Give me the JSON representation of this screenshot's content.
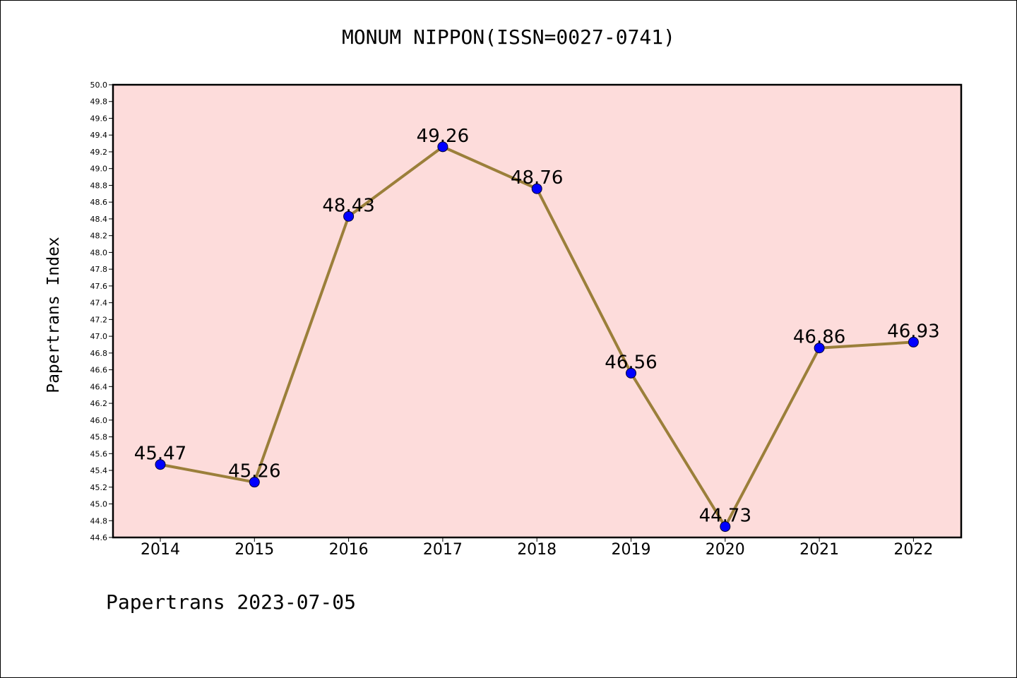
{
  "title": "MONUM NIPPON(ISSN=0027-0741)",
  "footer": "Papertrans 2023-07-05",
  "colors": {
    "plot_background": "#fddcdb",
    "line": "#9b7f3a",
    "marker": "#0000ff"
  },
  "chart_data": {
    "type": "line",
    "title": "MONUM NIPPON(ISSN=0027-0741)",
    "xlabel": "",
    "ylabel": "Papertrans Index",
    "categories": [
      "2014",
      "2015",
      "2016",
      "2017",
      "2018",
      "2019",
      "2020",
      "2021",
      "2022"
    ],
    "values": [
      45.47,
      45.26,
      48.43,
      49.26,
      48.76,
      46.56,
      44.73,
      46.86,
      46.93
    ],
    "data_labels": [
      "45.47",
      "45.26",
      "48.43",
      "49.26",
      "48.76",
      "46.56",
      "44.73",
      "46.86",
      "46.93"
    ],
    "ylim": [
      44.6,
      50.0
    ],
    "yticks": [
      "44.6",
      "44.8",
      "45.0",
      "45.2",
      "45.4",
      "45.6",
      "45.8",
      "46.0",
      "46.2",
      "46.4",
      "46.6",
      "46.8",
      "47.0",
      "47.2",
      "47.4",
      "47.6",
      "47.8",
      "48.0",
      "48.2",
      "48.4",
      "48.6",
      "48.8",
      "49.0",
      "49.2",
      "49.4",
      "49.6",
      "49.8",
      "50.0"
    ],
    "grid": false,
    "legend": "none"
  }
}
